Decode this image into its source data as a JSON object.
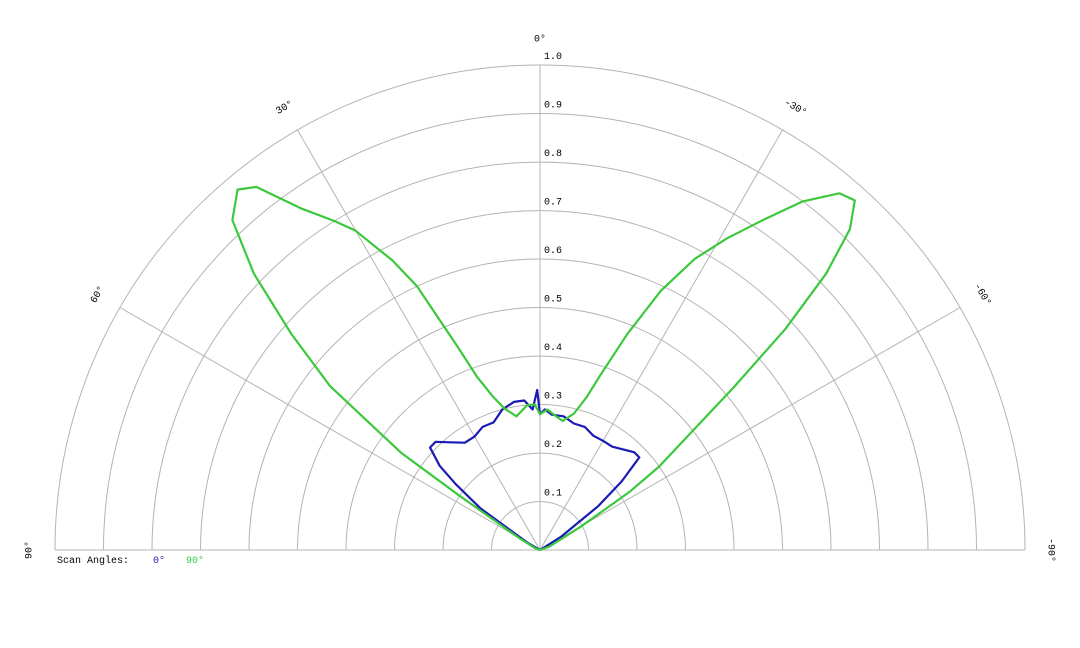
{
  "chart_data": {
    "type": "polar",
    "rlim": [
      0,
      1
    ],
    "rticks": [
      0.1,
      0.2,
      0.3,
      0.4,
      0.5,
      0.6,
      0.7,
      0.8,
      0.9,
      {
        "value": 1,
        "label": "1.0"
      }
    ],
    "thetalim": [
      -90,
      90
    ],
    "thetaticks": [
      {
        "value": 90,
        "label": "90°"
      },
      {
        "value": 60,
        "label": "60°"
      },
      {
        "value": 30,
        "label": "30°"
      },
      {
        "value": 0,
        "label": "0°"
      },
      {
        "value": -30,
        "label": "-30°"
      },
      {
        "value": -60,
        "label": "-60°"
      },
      {
        "value": -90,
        "label": "-90°"
      }
    ],
    "grid": true,
    "legend_title": "Scan Angles:",
    "series": [
      {
        "name": "0°",
        "color": "#1a1ab4",
        "theta": [
          90,
          60,
          55,
          52,
          50,
          47,
          44,
          40,
          35,
          30,
          25,
          20,
          15,
          10,
          6,
          3,
          1,
          0,
          -2,
          -5,
          -10,
          -15,
          -20,
          -25,
          -30,
          -35,
          -40,
          -44,
          -47,
          -50,
          -53,
          -58,
          -90
        ],
        "values": [
          0,
          0.03,
          0.15,
          0.22,
          0.27,
          0.31,
          0.31,
          0.29,
          0.27,
          0.27,
          0.28,
          0.28,
          0.3,
          0.31,
          0.31,
          0.29,
          0.33,
          0.28,
          0.29,
          0.28,
          0.28,
          0.27,
          0.27,
          0.26,
          0.26,
          0.26,
          0.27,
          0.28,
          0.28,
          0.22,
          0.15,
          0.05,
          0
        ]
      },
      {
        "name": "90°",
        "color": "#3cc83c",
        "theta": [
          90,
          70,
          60,
          56,
          55,
          52,
          49,
          46,
          43,
          40,
          38,
          35,
          32,
          30,
          27,
          25,
          22,
          20,
          17,
          14,
          10,
          5,
          2,
          0,
          -3,
          -6,
          -10,
          -14,
          -17,
          -19,
          -22,
          -25,
          -28,
          -31,
          -34,
          -37,
          -40,
          -42,
          -44,
          -46,
          -48,
          -50,
          -52,
          -55,
          -57,
          -60,
          -70,
          -90
        ],
        "values": [
          0,
          0.01,
          0.05,
          0.2,
          0.35,
          0.55,
          0.68,
          0.82,
          0.93,
          0.97,
          0.95,
          0.86,
          0.8,
          0.76,
          0.67,
          0.6,
          0.45,
          0.38,
          0.33,
          0.3,
          0.28,
          0.3,
          0.3,
          0.28,
          0.29,
          0.28,
          0.27,
          0.29,
          0.33,
          0.38,
          0.48,
          0.59,
          0.68,
          0.75,
          0.82,
          0.9,
          0.96,
          0.97,
          0.92,
          0.82,
          0.68,
          0.52,
          0.4,
          0.3,
          0.22,
          0.1,
          0.02,
          0
        ]
      }
    ]
  }
}
